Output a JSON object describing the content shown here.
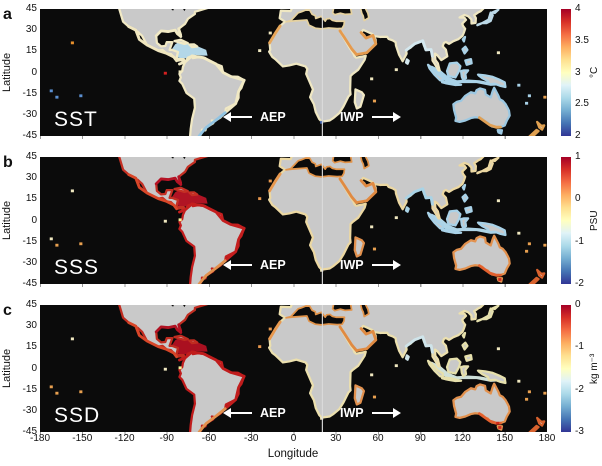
{
  "figure": {
    "background": "#ffffff",
    "ocean_color": "#0b0b0b",
    "land_color": "#c9c9c9",
    "divider_longitude": 20
  },
  "axes": {
    "x_label": "Longitude",
    "y_label": "Latitude",
    "y_ticks": [
      "45",
      "30",
      "15",
      "0",
      "-15",
      "-30",
      "-45"
    ],
    "x_ticks": [
      {
        "label": "-180",
        "lon": -180
      },
      {
        "label": "-150",
        "lon": -150
      },
      {
        "label": "-120",
        "lon": -120
      },
      {
        "label": "-90",
        "lon": -90
      },
      {
        "label": "-60",
        "lon": -60
      },
      {
        "label": "-30",
        "lon": -30
      },
      {
        "label": "0",
        "lon": 0
      },
      {
        "label": "30",
        "lon": 30
      },
      {
        "label": "60",
        "lon": 60
      },
      {
        "label": "90",
        "lon": 90
      },
      {
        "label": "120",
        "lon": 120
      },
      {
        "label": "150",
        "lon": 150
      },
      {
        "label": "180",
        "lon": 180
      }
    ]
  },
  "annotations": {
    "aep": "AEP",
    "iwp": "IWP"
  },
  "colormap": [
    "#a50026",
    "#d73027",
    "#f46d43",
    "#fdae61",
    "#fee090",
    "#ffffbf",
    "#e0f3f8",
    "#abd9e9",
    "#74add1",
    "#4575b4",
    "#313695"
  ],
  "panels": [
    {
      "letter": "a",
      "variable": "SST",
      "cbar_unit": "°C",
      "cbar_ticks": [
        "4",
        "3.5",
        "3",
        "2.5",
        "2"
      ],
      "map_colors": {
        "na": "#f1e9c4",
        "sa": "#f1e9c4",
        "afeu": "#efe7c2",
        "med": "#e6d2a0",
        "mada": "#f1e9c4",
        "sea": "#a9d2e8",
        "au": "#9cc8e2",
        "nz": "#e0a050",
        "jp": "#bcd9e8",
        "carib": "#b3d7e8",
        "javasea": "#a9d2e8",
        "ovsae": "#f1e9c4",
        "ovsas": "#92c4e2",
        "ovgulf": "#f1e9c4",
        "ovmexpac": "#f0e6be",
        "ovnwaf": "#e8a75a",
        "ovbengal": "#d4e8ef",
        "ovarab": "#e59a4d",
        "ovauss": "#e0a055"
      },
      "dot_colors": [
        "#e8902c",
        "#5b8fd0",
        "#5b8fd0",
        "#5b8fd0",
        "#d42020",
        "#f3ebc2",
        "#f0e8c0",
        "#f0e8c0",
        "#3f63b0",
        "#f0e8c0",
        "#e8a050",
        "#f0e8c0",
        "#f0e8c0",
        "#a9d2e8",
        "#a9d2e8",
        "#a9d2e8",
        "#e8a050",
        "#9cc8e2",
        "#e0a055"
      ]
    },
    {
      "letter": "b",
      "variable": "SSS",
      "cbar_unit": "PSU",
      "cbar_ticks": [
        "1",
        "0",
        "-1",
        "-2"
      ],
      "map_colors": {
        "na": "#c43024",
        "sa": "#c41e1e",
        "afeu": "#ecd8a2",
        "med": "#e2944a",
        "mada": "#e2914e",
        "sea": "#a9d2e8",
        "au": "#e2914e",
        "nz": "#d8622e",
        "jp": "#ecd8a2",
        "carib": "#b01424",
        "javasea": "#aed4e6",
        "ovsae": "#c41e1e",
        "ovsas": "#e2914e",
        "ovgulf": "#b51325",
        "ovmexpac": "#d84628",
        "ovnwaf": "#e8984e",
        "ovbengal": "#a9d3e6",
        "ovarab": "#e08a42",
        "ovauss": "#e2602e"
      },
      "dot_colors": [
        "#f0e8c0",
        "#f0e8c0",
        "#e8a050",
        "#e8a050",
        "#f0e8c0",
        "#f7f29a",
        "#e8984e",
        "#e8984e",
        "#f0e8c0",
        "#f0e8c0",
        "#e8a050",
        "#f0e8c0",
        "#f0e8c0",
        "#f0e8c0",
        "#e8a050",
        "#e8a050",
        "#e8a050",
        "#d12a20",
        "#e2602e"
      ]
    },
    {
      "letter": "c",
      "variable": "SSD",
      "cbar_unit": "kg m⁻³",
      "cbar_ticks": [
        "0",
        "-1",
        "-2",
        "-3"
      ],
      "map_colors": {
        "na": "#c02c20",
        "sa": "#c01c1c",
        "afeu": "#ece0ae",
        "med": "#e2944a",
        "mada": "#e2914e",
        "sea": "#e6e0ac",
        "au": "#e2914e",
        "nz": "#d8622e",
        "jp": "#e6e0ac",
        "carib": "#aa1020",
        "javasea": "#cfe0d8",
        "ovsae": "#c01c1c",
        "ovsas": "#e2914e",
        "ovgulf": "#b01222",
        "ovmexpac": "#d84628",
        "ovnwaf": "#e8984e",
        "ovbengal": "#cfe4ea",
        "ovarab": "#e08a42",
        "ovauss": "#e2602e"
      },
      "dot_colors": [
        "#f0e8c0",
        "#e8a050",
        "#e8a050",
        "#e8a050",
        "#f0e8c0",
        "#f7f29a",
        "#e8984e",
        "#e8984e",
        "#f0e8c0",
        "#f0e8c0",
        "#e8a050",
        "#f0e8c0",
        "#f0e8c0",
        "#f0e8c0",
        "#e8a050",
        "#e8a050",
        "#e8a050",
        "#d12a20",
        "#cf2818"
      ]
    }
  ],
  "chart_data": [
    {
      "type": "heatmap",
      "panel": "a",
      "title": "SST",
      "unit": "°C",
      "colorbar_range": [
        2,
        4
      ],
      "colorbar_ticks": [
        4,
        3.5,
        3,
        2.5,
        2
      ],
      "xlabel": "Longitude",
      "xlim": [
        -180,
        180
      ],
      "ylabel": "Latitude",
      "ylim": [
        -45,
        45
      ],
      "annotations": [
        {
          "text": "AEP",
          "arrow": "left"
        },
        {
          "text": "IWP",
          "arrow": "right"
        }
      ],
      "notable_values": [
        {
          "region": "Caribbean and SE Asia / Indonesia coasts",
          "approx": 2.6
        },
        {
          "region": "Atlantic and most tropical coasts",
          "approx": 3.1
        },
        {
          "region": "Red Sea / Arabian and NW Africa coasts",
          "approx": 3.4
        },
        {
          "region": "Galapagos spot",
          "approx": 3.9
        },
        {
          "region": "S Australia and Agulhas spots",
          "approx": 2.2
        }
      ]
    },
    {
      "type": "heatmap",
      "panel": "b",
      "title": "SSS",
      "unit": "PSU",
      "colorbar_range": [
        -2,
        1
      ],
      "colorbar_ticks": [
        1,
        0,
        -1,
        -2
      ],
      "xlabel": "Longitude",
      "xlim": [
        -180,
        180
      ],
      "ylabel": "Latitude",
      "ylim": [
        -45,
        45
      ],
      "annotations": [
        {
          "text": "AEP",
          "arrow": "left"
        },
        {
          "text": "IWP",
          "arrow": "right"
        }
      ],
      "notable_values": [
        {
          "region": "Caribbean / Gulf of Mexico / Central America",
          "approx": 0.9
        },
        {
          "region": "NE South America coast",
          "approx": 0.7
        },
        {
          "region": "African and Australian coasts",
          "approx": 0.3
        },
        {
          "region": "Bay of Bengal / Indonesia coasts",
          "approx": -1.0
        }
      ]
    },
    {
      "type": "heatmap",
      "panel": "c",
      "title": "SSD",
      "unit": "kg m⁻³",
      "colorbar_range": [
        -3,
        0
      ],
      "colorbar_ticks": [
        0,
        -1,
        -2,
        -3
      ],
      "xlabel": "Longitude",
      "xlim": [
        -180,
        180
      ],
      "ylabel": "Latitude",
      "ylim": [
        -45,
        45
      ],
      "annotations": [
        {
          "text": "AEP",
          "arrow": "left"
        },
        {
          "text": "IWP",
          "arrow": "right"
        }
      ],
      "notable_values": [
        {
          "region": "Caribbean / Gulf of Mexico",
          "approx": -0.2
        },
        {
          "region": "South America coasts",
          "approx": -0.4
        },
        {
          "region": "Africa / Australia coasts",
          "approx": -0.8
        },
        {
          "region": "India / China coasts",
          "approx": -1.5
        },
        {
          "region": "Indonesian seas",
          "approx": -2.1
        }
      ]
    }
  ]
}
